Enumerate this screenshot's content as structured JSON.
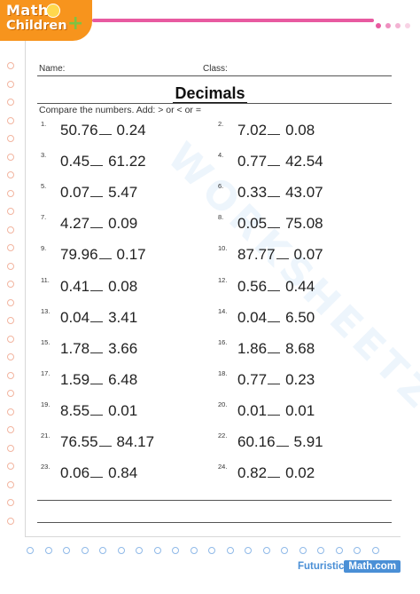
{
  "logo": {
    "line1": "Math",
    "line2": "Children",
    "plus": "+"
  },
  "header": {
    "name_label": "Name:",
    "class_label": "Class:"
  },
  "title": "Decimals",
  "instructions": "Compare the numbers. Add: > or < or =",
  "watermark": "WORKSHEETZONE",
  "problems": [
    {
      "n": "1.",
      "a": "50.76",
      "b": "0.24"
    },
    {
      "n": "2.",
      "a": "7.02",
      "b": "0.08"
    },
    {
      "n": "3.",
      "a": "0.45",
      "b": "61.22"
    },
    {
      "n": "4.",
      "a": "0.77",
      "b": "42.54"
    },
    {
      "n": "5.",
      "a": "0.07",
      "b": "5.47"
    },
    {
      "n": "6.",
      "a": "0.33",
      "b": "43.07"
    },
    {
      "n": "7.",
      "a": "4.27",
      "b": "0.09"
    },
    {
      "n": "8.",
      "a": "0.05",
      "b": "75.08"
    },
    {
      "n": "9.",
      "a": "79.96",
      "b": "0.17"
    },
    {
      "n": "10.",
      "a": "87.77",
      "b": "0.07"
    },
    {
      "n": "11.",
      "a": "0.41",
      "b": "0.08"
    },
    {
      "n": "12.",
      "a": "0.56",
      "b": "0.44"
    },
    {
      "n": "13.",
      "a": "0.04",
      "b": "3.41"
    },
    {
      "n": "14.",
      "a": "0.04",
      "b": "6.50"
    },
    {
      "n": "15.",
      "a": "1.78",
      "b": "3.66"
    },
    {
      "n": "16.",
      "a": "1.86",
      "b": "8.68"
    },
    {
      "n": "17.",
      "a": "1.59",
      "b": "6.48"
    },
    {
      "n": "18.",
      "a": "0.77",
      "b": "0.23"
    },
    {
      "n": "19.",
      "a": "8.55",
      "b": "0.01"
    },
    {
      "n": "20.",
      "a": "0.01",
      "b": "0.01"
    },
    {
      "n": "21.",
      "a": "76.55",
      "b": "84.17"
    },
    {
      "n": "22.",
      "a": "60.16",
      "b": "5.91"
    },
    {
      "n": "23.",
      "a": "0.06",
      "b": "0.84"
    },
    {
      "n": "24.",
      "a": "0.82",
      "b": "0.02"
    }
  ],
  "footer": {
    "brand_part1": "Futuristic",
    "brand_part2": "Math.com"
  },
  "colors": {
    "accent_orange": "#f7941d",
    "accent_pink": "#e85aa0",
    "accent_blue": "#4a8fd6",
    "accent_green": "#7ec242"
  }
}
